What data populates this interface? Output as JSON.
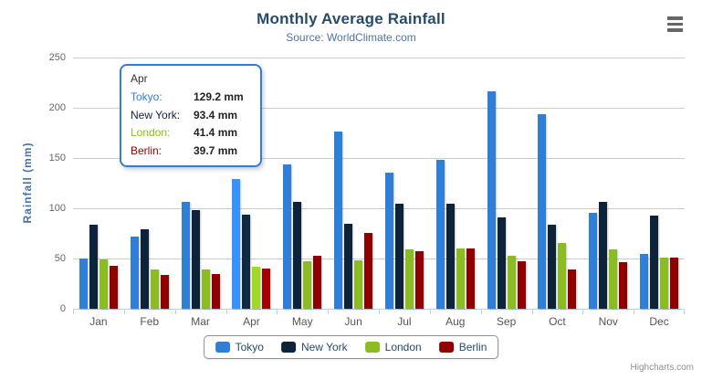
{
  "chart_data": {
    "type": "bar",
    "title": "Monthly Average Rainfall",
    "subtitle": "Source: WorldClimate.com",
    "categories": [
      "Jan",
      "Feb",
      "Mar",
      "Apr",
      "May",
      "Jun",
      "Jul",
      "Aug",
      "Sep",
      "Oct",
      "Nov",
      "Dec"
    ],
    "ylabel": "Rainfall (mm)",
    "ylim": [
      0,
      250
    ],
    "yticks": [
      0,
      50,
      100,
      150,
      200,
      250
    ],
    "grid": true,
    "legend_position": "bottom",
    "hovered_category": "Apr",
    "series": [
      {
        "name": "Tokyo",
        "color": "#2f7ed8",
        "values": [
          49.9,
          71.5,
          106.4,
          129.2,
          144.0,
          176.0,
          135.6,
          148.5,
          216.4,
          194.1,
          95.6,
          54.4
        ]
      },
      {
        "name": "New York",
        "color": "#0d233a",
        "values": [
          83.6,
          78.8,
          98.5,
          93.4,
          106.0,
          84.5,
          105.0,
          104.3,
          91.2,
          83.5,
          106.6,
          92.3
        ]
      },
      {
        "name": "London",
        "color": "#8bbc21",
        "values": [
          48.9,
          38.8,
          39.3,
          41.4,
          47.0,
          48.3,
          59.0,
          59.6,
          52.4,
          65.2,
          59.3,
          51.2
        ]
      },
      {
        "name": "Berlin",
        "color": "#910000",
        "values": [
          42.4,
          33.2,
          34.5,
          39.7,
          52.6,
          75.5,
          57.4,
          60.4,
          47.6,
          39.1,
          46.8,
          51.1
        ]
      }
    ]
  },
  "tooltip": {
    "header": "Apr",
    "border_color": "#2f7ed8",
    "rows": [
      {
        "label": "Tokyo:",
        "value": "129.2 mm",
        "color": "#2f7ed8"
      },
      {
        "label": "New York:",
        "value": "93.4 mm",
        "color": "#0d233a"
      },
      {
        "label": "London:",
        "value": "41.4 mm",
        "color": "#8bbc21"
      },
      {
        "label": "Berlin:",
        "value": "39.7 mm",
        "color": "#910000"
      }
    ]
  },
  "credits": "Highcharts.com",
  "colors": {
    "title": "#274b6d",
    "subtitle": "#4d759e",
    "axis_title": "#4572a7",
    "axis_line": "#c0d0e0",
    "gridline": "#cdcdcd"
  }
}
